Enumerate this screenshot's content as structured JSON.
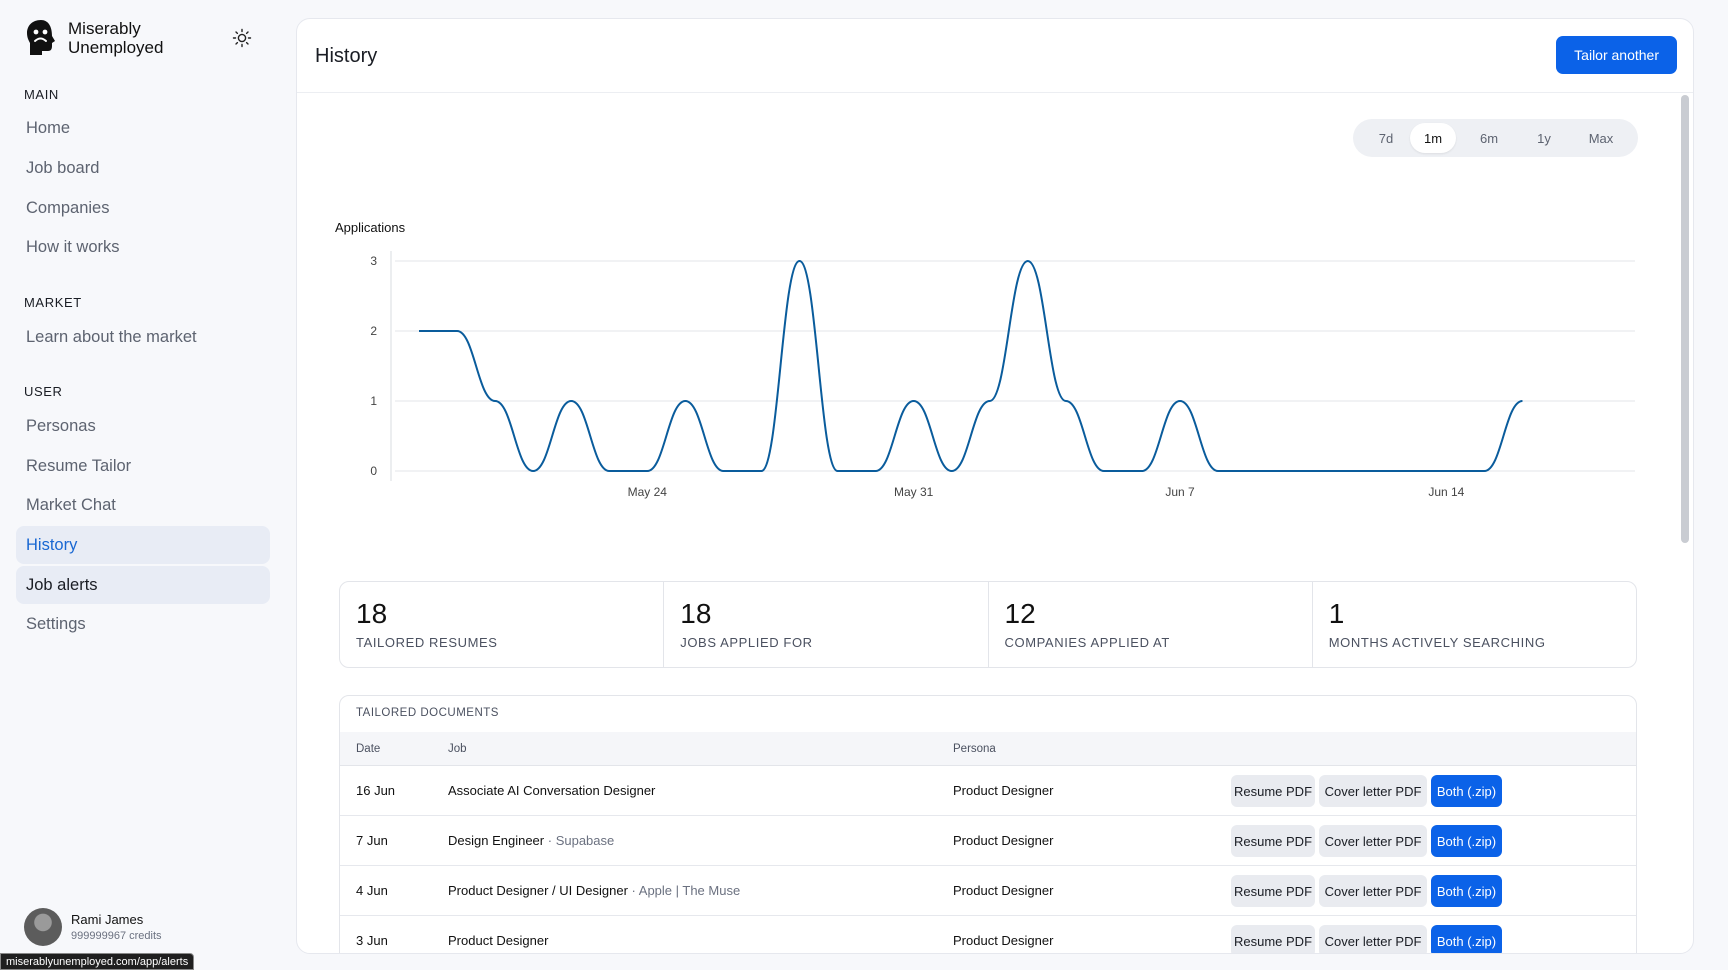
{
  "brand": {
    "name": "Miserably Unemployed"
  },
  "sidebar": {
    "sections": [
      {
        "label": "MAIN",
        "items": [
          "Home",
          "Job board",
          "Companies",
          "How it works"
        ]
      },
      {
        "label": "MARKET",
        "items": [
          "Learn about the market"
        ]
      },
      {
        "label": "USER",
        "items": [
          "Personas",
          "Resume Tailor",
          "Market Chat",
          "History",
          "Job alerts",
          "Settings"
        ]
      }
    ],
    "active_item": "History",
    "hovered_item": "Job alerts"
  },
  "user": {
    "name": "Rami James",
    "credits": "999999967 credits"
  },
  "status_url": "miserablyunemployed.com/app/alerts",
  "header": {
    "title": "History",
    "tailor_button": "Tailor another"
  },
  "ranges": {
    "options": [
      "7d",
      "1m",
      "6m",
      "1y",
      "Max"
    ],
    "selected": "1m"
  },
  "chart_data": {
    "type": "line",
    "ylabel": "Applications",
    "y_ticks": [
      "0",
      "1",
      "2",
      "3"
    ],
    "ylim": [
      0,
      3
    ],
    "x_ticks": [
      "May 24",
      "May 31",
      "Jun 7",
      "Jun 14"
    ],
    "x": [
      "May 18",
      "May 19",
      "May 20",
      "May 21",
      "May 22",
      "May 23",
      "May 24",
      "May 25",
      "May 26",
      "May 27",
      "May 28",
      "May 29",
      "May 30",
      "May 31",
      "Jun 1",
      "Jun 2",
      "Jun 3",
      "Jun 4",
      "Jun 5",
      "Jun 6",
      "Jun 7",
      "Jun 8",
      "Jun 9",
      "Jun 10",
      "Jun 11",
      "Jun 12",
      "Jun 13",
      "Jun 14",
      "Jun 15",
      "Jun 16"
    ],
    "series": [
      {
        "values": [
          2,
          2,
          1,
          0,
          1,
          0,
          0,
          1,
          0,
          0,
          3,
          0,
          0,
          1,
          0,
          1,
          3,
          1,
          0,
          0,
          1,
          0,
          0,
          0,
          0,
          0,
          0,
          0,
          0,
          1
        ],
        "color": "#0a5c9c"
      }
    ],
    "grid": true
  },
  "stats": [
    {
      "value": "18",
      "label": "TAILORED RESUMES"
    },
    {
      "value": "18",
      "label": "JOBS APPLIED FOR"
    },
    {
      "value": "12",
      "label": "COMPANIES APPLIED AT"
    },
    {
      "value": "1",
      "label": "MONTHS ACTIVELY SEARCHING"
    }
  ],
  "documents": {
    "title": "TAILORED DOCUMENTS",
    "columns": [
      "Date",
      "Job",
      "Persona"
    ],
    "actions": [
      "Resume PDF",
      "Cover letter PDF",
      "Both (.zip)"
    ],
    "rows": [
      {
        "date": "16 Jun",
        "job": "Associate AI Conversation Designer",
        "company": "",
        "persona": "Product Designer"
      },
      {
        "date": "7 Jun",
        "job": "Design Engineer",
        "company": "· Supabase",
        "persona": "Product Designer"
      },
      {
        "date": "4 Jun",
        "job": "Product Designer / UI Designer",
        "company": "· Apple | The Muse",
        "persona": "Product Designer"
      },
      {
        "date": "3 Jun",
        "job": "Product Designer",
        "company": "",
        "persona": "Product Designer"
      }
    ]
  }
}
